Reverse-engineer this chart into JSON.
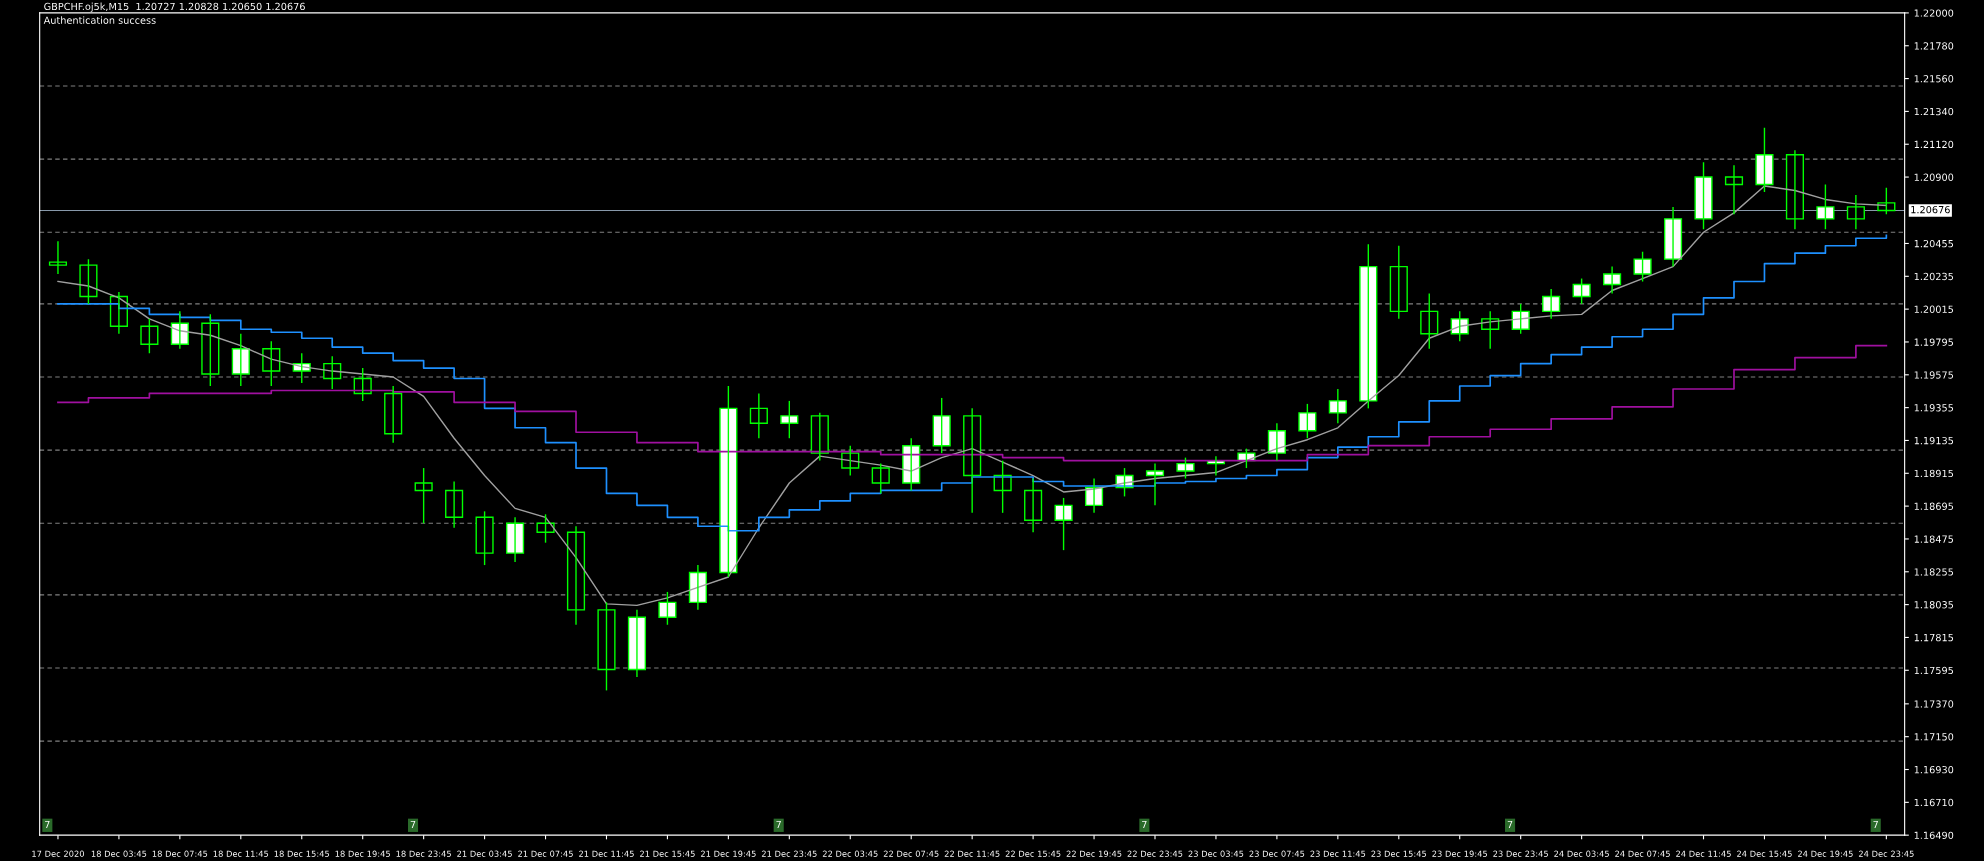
{
  "chart_data": {
    "type": "candlestick",
    "title": "GBPCHF.oj5k,M15  1.20727 1.20828 1.20650 1.20676",
    "subtitle": "Authentication success",
    "annotations": [
      "7",
      "7",
      "7",
      "7",
      "7",
      "7"
    ],
    "categories": [
      "17 Dec 2020",
      null,
      "18 Dec 03:45",
      null,
      "18 Dec 07:45",
      null,
      "18 Dec 11:45",
      null,
      "18 Dec 15:45",
      null,
      "18 Dec 19:45",
      null,
      "18 Dec 23:45",
      null,
      "21 Dec 03:45",
      null,
      "21 Dec 07:45",
      null,
      "21 Dec 11:45",
      null,
      "21 Dec 15:45",
      null,
      "21 Dec 19:45",
      null,
      "21 Dec 23:45",
      null,
      "22 Dec 03:45",
      null,
      "22 Dec 07:45",
      null,
      "22 Dec 11:45",
      null,
      "22 Dec 15:45",
      null,
      "22 Dec 19:45",
      null,
      "22 Dec 23:45",
      null,
      "23 Dec 03:45",
      null,
      "23 Dec 07:45",
      null,
      "23 Dec 11:45",
      null,
      "23 Dec 15:45",
      null,
      "23 Dec 19:45",
      null,
      "23 Dec 23:45",
      null,
      "24 Dec 03:45",
      null,
      "24 Dec 07:45",
      null,
      "24 Dec 11:45",
      null,
      "24 Dec 15:45",
      null,
      "24 Dec 19:45",
      null,
      "24 Dec 23:45"
    ],
    "color": "#00ff00",
    "ohlc": [
      [
        1.2033,
        1.2047,
        1.2025,
        1.2031
      ],
      [
        1.2031,
        1.2035,
        1.2005,
        1.201
      ],
      [
        1.201,
        1.2013,
        1.1985,
        1.199
      ],
      [
        1.199,
        1.1995,
        1.1972,
        1.1978
      ],
      [
        1.1978,
        1.2,
        1.1975,
        1.1992
      ],
      [
        1.1992,
        1.1998,
        1.195,
        1.1958
      ],
      [
        1.1958,
        1.1985,
        1.195,
        1.1975
      ],
      [
        1.1975,
        1.198,
        1.195,
        1.196
      ],
      [
        1.196,
        1.1972,
        1.1952,
        1.1965
      ],
      [
        1.1965,
        1.197,
        1.1948,
        1.1955
      ],
      [
        1.1955,
        1.1962,
        1.194,
        1.1945
      ],
      [
        1.1945,
        1.195,
        1.1912,
        1.1918
      ],
      [
        1.1885,
        1.1895,
        1.1858,
        1.188
      ],
      [
        1.188,
        1.1886,
        1.1855,
        1.1862
      ],
      [
        1.1862,
        1.1866,
        1.183,
        1.1838
      ],
      [
        1.1838,
        1.1862,
        1.1832,
        1.1858
      ],
      [
        1.1858,
        1.1864,
        1.1845,
        1.1852
      ],
      [
        1.1852,
        1.1856,
        1.179,
        1.18
      ],
      [
        1.18,
        1.1805,
        1.1746,
        1.176
      ],
      [
        1.176,
        1.18,
        1.1755,
        1.1795
      ],
      [
        1.1795,
        1.1812,
        1.179,
        1.1805
      ],
      [
        1.1805,
        1.183,
        1.18,
        1.1825
      ],
      [
        1.1825,
        1.195,
        1.1822,
        1.1935
      ],
      [
        1.1935,
        1.1945,
        1.1915,
        1.1925
      ],
      [
        1.1925,
        1.194,
        1.1915,
        1.193
      ],
      [
        1.193,
        1.1932,
        1.19,
        1.1905
      ],
      [
        1.1905,
        1.191,
        1.189,
        1.1895
      ],
      [
        1.1895,
        1.1898,
        1.1878,
        1.1885
      ],
      [
        1.1885,
        1.1915,
        1.188,
        1.191
      ],
      [
        1.191,
        1.1942,
        1.1905,
        1.193
      ],
      [
        1.193,
        1.1935,
        1.1865,
        1.189
      ],
      [
        1.189,
        1.19,
        1.1865,
        1.188
      ],
      [
        1.188,
        1.1888,
        1.1852,
        1.186
      ],
      [
        1.186,
        1.1875,
        1.184,
        1.187
      ],
      [
        1.187,
        1.1888,
        1.1865,
        1.1882
      ],
      [
        1.1882,
        1.1895,
        1.1876,
        1.189
      ],
      [
        1.189,
        1.1898,
        1.187,
        1.1893
      ],
      [
        1.1893,
        1.1902,
        1.1888,
        1.1898
      ],
      [
        1.1898,
        1.1903,
        1.189,
        1.19
      ],
      [
        1.19,
        1.1908,
        1.1895,
        1.1905
      ],
      [
        1.1905,
        1.1925,
        1.19,
        1.192
      ],
      [
        1.192,
        1.1938,
        1.1915,
        1.1932
      ],
      [
        1.1932,
        1.1948,
        1.1925,
        1.194
      ],
      [
        1.194,
        1.2045,
        1.1935,
        1.203
      ],
      [
        1.203,
        1.2044,
        1.1995,
        1.2
      ],
      [
        1.2,
        1.2012,
        1.1975,
        1.1985
      ],
      [
        1.1985,
        1.2,
        1.198,
        1.1995
      ],
      [
        1.1995,
        1.2,
        1.1975,
        1.1988
      ],
      [
        1.1988,
        1.2005,
        1.1985,
        1.2
      ],
      [
        1.2,
        1.2015,
        1.1995,
        1.201
      ],
      [
        1.201,
        1.2022,
        1.2005,
        1.2018
      ],
      [
        1.2018,
        1.203,
        1.2012,
        1.2025
      ],
      [
        1.2025,
        1.204,
        1.202,
        1.2035
      ],
      [
        1.2035,
        1.207,
        1.203,
        1.2062
      ],
      [
        1.2062,
        1.21,
        1.2055,
        1.209
      ],
      [
        1.209,
        1.2098,
        1.2065,
        1.2085
      ],
      [
        1.2085,
        1.2123,
        1.208,
        1.2105
      ],
      [
        1.2105,
        1.2108,
        1.2055,
        1.2062
      ],
      [
        1.2062,
        1.2085,
        1.2055,
        1.207
      ],
      [
        1.207,
        1.2078,
        1.2055,
        1.2062
      ],
      [
        1.20727,
        1.20828,
        1.2065,
        1.20676
      ]
    ],
    "series": [
      {
        "type": "line",
        "color": "#a0a0a0",
        "values": [
          1.202,
          1.2017,
          1.2009,
          1.1995,
          1.1987,
          1.1984,
          1.1977,
          1.1968,
          1.1963,
          1.196,
          1.1958,
          1.1956,
          1.1943,
          1.1915,
          1.189,
          1.1868,
          1.1862,
          1.1835,
          1.1804,
          1.1803,
          1.1808,
          1.1815,
          1.1822,
          1.1855,
          1.1885,
          1.1903,
          1.19,
          1.1897,
          1.1893,
          1.1902,
          1.1908,
          1.1899,
          1.189,
          1.1879,
          1.1881,
          1.1885,
          1.1888,
          1.189,
          1.1892,
          1.19,
          1.1908,
          1.1914,
          1.1922,
          1.194,
          1.1957,
          1.1982,
          1.199,
          1.1993,
          1.1995,
          1.1997,
          1.1998,
          1.2014,
          1.2022,
          1.203,
          1.2053,
          1.2066,
          1.2084,
          1.2081,
          1.2075,
          1.2072,
          1.2071
        ]
      },
      {
        "type": "step",
        "color": "#1e90ff",
        "values": [
          1.2005,
          1.2005,
          1.2002,
          1.1998,
          1.1996,
          1.1994,
          1.1988,
          1.1986,
          1.1982,
          1.1976,
          1.1972,
          1.1967,
          1.1962,
          1.1955,
          1.1935,
          1.1922,
          1.1912,
          1.1895,
          1.1878,
          1.187,
          1.1862,
          1.1856,
          1.1853,
          1.1862,
          1.1867,
          1.1873,
          1.1878,
          1.188,
          1.188,
          1.1885,
          1.1889,
          1.1889,
          1.1886,
          1.1883,
          1.1883,
          1.1883,
          1.1885,
          1.1886,
          1.1888,
          1.189,
          1.1894,
          1.1902,
          1.1909,
          1.1916,
          1.1926,
          1.194,
          1.195,
          1.1957,
          1.1965,
          1.1971,
          1.1976,
          1.1983,
          1.1988,
          1.1998,
          1.2009,
          1.202,
          1.2032,
          1.2039,
          1.2044,
          1.2049,
          1.2051
        ]
      },
      {
        "type": "step",
        "color": "#a010a0",
        "values": [
          1.1939,
          1.1942,
          1.1942,
          1.1945,
          1.1945,
          1.1945,
          1.1945,
          1.1947,
          1.1947,
          1.1947,
          1.1947,
          1.1946,
          1.1946,
          1.1939,
          1.1939,
          1.1933,
          1.1933,
          1.1919,
          1.1919,
          1.1912,
          1.1912,
          1.1906,
          1.1906,
          1.1906,
          1.1906,
          1.1906,
          1.1906,
          1.1904,
          1.1904,
          1.1904,
          1.1904,
          1.1902,
          1.1902,
          1.19,
          1.19,
          1.19,
          1.19,
          1.19,
          1.19,
          1.19,
          1.19,
          1.1904,
          1.1904,
          1.191,
          1.191,
          1.1916,
          1.1916,
          1.1921,
          1.1921,
          1.1928,
          1.1928,
          1.1936,
          1.1936,
          1.1948,
          1.1948,
          1.1961,
          1.1961,
          1.1969,
          1.1969,
          1.1977,
          1.1977
        ]
      }
    ],
    "ref_lines": [
      {
        "axis": "y",
        "value": 1.20676,
        "label": "1.20676",
        "color": "#8899aa",
        "line_style": "solid"
      },
      {
        "axis": "y",
        "value": 1.2151,
        "color": "#808080",
        "line_style": "dashed"
      },
      {
        "axis": "y",
        "value": 1.2102,
        "color": "#808080",
        "line_style": "dashed"
      },
      {
        "axis": "y",
        "value": 1.2053,
        "color": "#808080",
        "line_style": "dashed"
      },
      {
        "axis": "y",
        "value": 1.2005,
        "color": "#808080",
        "line_style": "dashed"
      },
      {
        "axis": "y",
        "value": 1.1956,
        "color": "#808080",
        "line_style": "dashed"
      },
      {
        "axis": "y",
        "value": 1.1907,
        "color": "#808080",
        "line_style": "dashed"
      },
      {
        "axis": "y",
        "value": 1.1858,
        "color": "#808080",
        "line_style": "dashed"
      },
      {
        "axis": "y",
        "value": 1.181,
        "color": "#808080",
        "line_style": "dashed"
      },
      {
        "axis": "y",
        "value": 1.1761,
        "color": "#808080",
        "line_style": "dashed"
      },
      {
        "axis": "y",
        "value": 1.1712,
        "color": "#808080",
        "line_style": "dashed"
      }
    ],
    "ylim": [
      1.1649,
      1.22
    ],
    "yticks": [
      {
        "value": 1.1649,
        "label": "1.16490"
      },
      {
        "value": 1.1671,
        "label": "1.16710"
      },
      {
        "value": 1.1693,
        "label": "1.16930"
      },
      {
        "value": 1.1715,
        "label": "1.17150"
      },
      {
        "value": 1.1737,
        "label": "1.17370"
      },
      {
        "value": 1.17595,
        "label": "1.17595"
      },
      {
        "value": 1.17815,
        "label": "1.17815"
      },
      {
        "value": 1.18035,
        "label": "1.18035"
      },
      {
        "value": 1.18255,
        "label": "1.18255"
      },
      {
        "value": 1.18475,
        "label": "1.18475"
      },
      {
        "value": 1.18695,
        "label": "1.18695"
      },
      {
        "value": 1.18915,
        "label": "1.18915"
      },
      {
        "value": 1.19135,
        "label": "1.19135"
      },
      {
        "value": 1.19355,
        "label": "1.19355"
      },
      {
        "value": 1.19575,
        "label": "1.19575"
      },
      {
        "value": 1.19795,
        "label": "1.19795"
      },
      {
        "value": 1.20015,
        "label": "1.20015"
      },
      {
        "value": 1.20235,
        "label": "1.20235"
      },
      {
        "value": 1.20455,
        "label": "1.20455"
      },
      {
        "value": 1.209,
        "label": "1.20900"
      },
      {
        "value": 1.2112,
        "label": "1.21120"
      },
      {
        "value": 1.2134,
        "label": "1.21340"
      },
      {
        "value": 1.2156,
        "label": "1.21560"
      },
      {
        "value": 1.2178,
        "label": "1.21780"
      },
      {
        "value": 1.22,
        "label": "1.22000"
      }
    ],
    "grid": false
  }
}
